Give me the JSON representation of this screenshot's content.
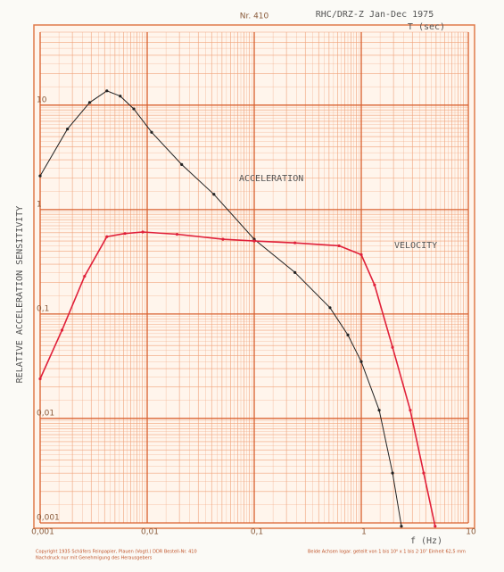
{
  "chart_data": {
    "type": "line",
    "header": "Nr. 410",
    "note": "RHC/DRZ-Z Jan-Dec 1975",
    "top_axis_label": "T (sec)",
    "xlabel": "f (Hz)",
    "ylabel": "RELATIVE ACCELERATION SENSITIVITY",
    "footer": [
      "Copyright 1935 Schäfers Feinpapier, Plauen (Vogtl.) DDR Bestell-Nr. 410",
      "Nachdruck nur mit Genehmigung des Herausgebers",
      "Beide Achsen logar. geteilt von 1 bis 10⁶ x 1 bis 2·10⁷ Einheit 62,5 mm"
    ],
    "log_x": true,
    "log_y": true,
    "grid": true,
    "xlim": [
      0.001,
      10
    ],
    "ylim": [
      0.001,
      50
    ],
    "xticks": [
      {
        "value": 0.001,
        "label": "0,001"
      },
      {
        "value": 0.01,
        "label": "0,01"
      },
      {
        "value": 0.1,
        "label": "0,1"
      },
      1,
      10
    ],
    "yticks": [
      {
        "value": 0.001,
        "label": "0,001"
      },
      {
        "value": 0.01,
        "label": "0,01"
      },
      {
        "value": 0.1,
        "label": "0,1"
      },
      1,
      10
    ],
    "series": [
      {
        "name": "ACCELERATION",
        "color": "#222222",
        "x": [
          0.001,
          0.0018,
          0.0029,
          0.0042,
          0.0056,
          0.0075,
          0.011,
          0.021,
          0.042,
          0.1,
          0.24,
          0.51,
          0.75,
          1,
          1.47,
          1.96,
          2.37
        ],
        "values": [
          2.1,
          5.9,
          10.6,
          13.7,
          12.2,
          9.2,
          5.5,
          2.7,
          1.4,
          0.52,
          0.25,
          0.115,
          0.063,
          0.035,
          0.012,
          0.003,
          0.00093
        ]
      },
      {
        "name": "VELOCITY",
        "color": "#e0203a",
        "x": [
          0.001,
          0.0016,
          0.0026,
          0.0042,
          0.0062,
          0.0091,
          0.019,
          0.051,
          0.1,
          0.24,
          0.62,
          1,
          1.33,
          1.96,
          2.87,
          3.83,
          4.9
        ],
        "values": [
          0.024,
          0.07,
          0.23,
          0.55,
          0.59,
          0.61,
          0.58,
          0.52,
          0.5,
          0.48,
          0.45,
          0.37,
          0.19,
          0.048,
          0.012,
          0.003,
          0.00093
        ]
      }
    ]
  }
}
